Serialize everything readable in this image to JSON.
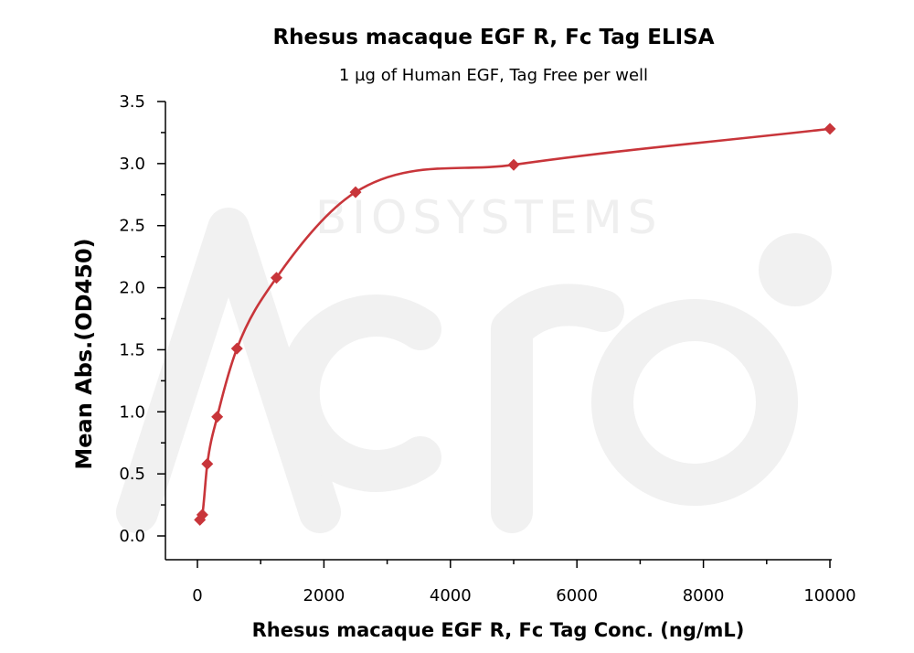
{
  "chart_data": {
    "type": "scatter",
    "title": "Rhesus macaque EGF R, Fc Tag ELISA",
    "subtitle": "1 µg of Human EGF, Tag Free per well",
    "xlabel": "Rhesus macaque EGF R, Fc Tag Conc. (ng/mL)",
    "ylabel": "Mean Abs.(OD450)",
    "xlim": [
      -500,
      10000
    ],
    "ylim": [
      -0.2,
      3.5
    ],
    "x_ticks": [
      0,
      2000,
      4000,
      6000,
      8000,
      10000
    ],
    "x_tick_labels": [
      "0",
      "2000",
      "4000",
      "6000",
      "8000",
      "10000"
    ],
    "y_ticks": [
      0.0,
      0.5,
      1.0,
      1.5,
      2.0,
      2.5,
      3.0,
      3.5
    ],
    "y_tick_labels": [
      "0.0",
      "0.5",
      "1.0",
      "1.5",
      "2.0",
      "2.5",
      "3.0",
      "3.5"
    ],
    "series": [
      {
        "x": [
          39,
          78,
          156,
          313,
          625,
          1250,
          2500,
          5000,
          10000
        ],
        "y": [
          0.13,
          0.17,
          0.58,
          0.96,
          1.51,
          2.08,
          2.77,
          2.99,
          3.28
        ],
        "marker": "diamond",
        "fit": "sigmoidal curve",
        "color": "#c8353a"
      }
    ],
    "grid": false,
    "legend": "none"
  },
  "watermark": {
    "text": "BIOSYSTEMS",
    "color": "#efefef"
  }
}
